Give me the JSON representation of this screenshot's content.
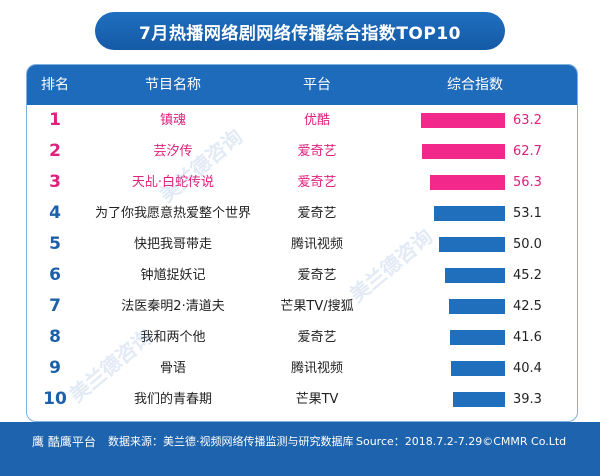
{
  "title": "7月热播网络剧网络传播综合指数TOP10",
  "headers": {
    "rank": "排名",
    "name": "节目名称",
    "platform": "平台",
    "index": "综合指数"
  },
  "chart_data": {
    "type": "bar",
    "title": "7月热播网络剧网络传播综合指数TOP10",
    "categories": [
      "镇魂",
      "芸汐传",
      "天乩·白蛇传说",
      "为了你我愿意热爱整个世界",
      "快把我哥带走",
      "钟馗捉妖记",
      "法医秦明2·清道夫",
      "我和两个他",
      "骨语",
      "我们的青春期"
    ],
    "series": [
      {
        "values": [
          63.2,
          62.7,
          56.3,
          53.1,
          50.0,
          45.2,
          42.5,
          41.6,
          40.4,
          39.3
        ]
      }
    ],
    "colors": {
      "top3": "#f2298a",
      "others": "#1f6fbd"
    }
  },
  "rows": [
    {
      "rank": "1",
      "name": "镇魂",
      "platform": "优酷",
      "value": "63.2"
    },
    {
      "rank": "2",
      "name": "芸汐传",
      "platform": "爱奇艺",
      "value": "62.7"
    },
    {
      "rank": "3",
      "name": "天乩·白蛇传说",
      "platform": "爱奇艺",
      "value": "56.3"
    },
    {
      "rank": "4",
      "name": "为了你我愿意热爱整个世界",
      "platform": "爱奇艺",
      "value": "53.1"
    },
    {
      "rank": "5",
      "name": "快把我哥带走",
      "platform": "腾讯视频",
      "value": "50.0"
    },
    {
      "rank": "6",
      "name": "钟馗捉妖记",
      "platform": "爱奇艺",
      "value": "45.2"
    },
    {
      "rank": "7",
      "name": "法医秦明2·清道夫",
      "platform": "芒果TV/搜狐",
      "value": "42.5"
    },
    {
      "rank": "8",
      "name": "我和两个他",
      "platform": "爱奇艺",
      "value": "41.6"
    },
    {
      "rank": "9",
      "name": "骨语",
      "platform": "腾讯视频",
      "value": "40.4"
    },
    {
      "rank": "10",
      "name": "我们的青春期",
      "platform": "芒果TV",
      "value": "39.3"
    }
  ],
  "footer": {
    "logo": "鹰 酷鹰平台",
    "source_cn": "数据来源：美兰德·视频网络传播监测与研究数据库",
    "source_en": "Source：2018.7.2-7.29©CMMR Co.Ltd"
  },
  "watermark": "美兰德咨询"
}
